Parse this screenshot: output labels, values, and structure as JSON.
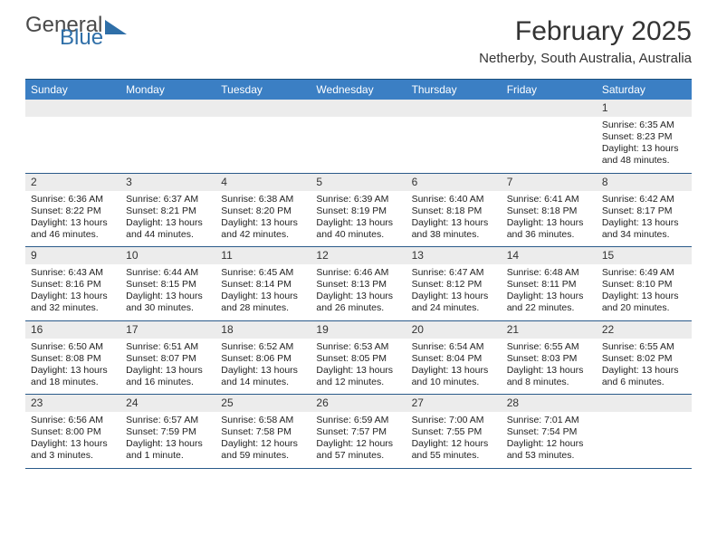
{
  "brand": {
    "part1": "General",
    "part2": "Blue"
  },
  "title": "February 2025",
  "location": "Netherby, South Australia, Australia",
  "colors": {
    "headerBlue": "#3b7fc4",
    "borderBlue": "#2a5a8a",
    "dayNumBg": "#ececec",
    "brandBlue": "#2f6fa8"
  },
  "dayNames": [
    "Sunday",
    "Monday",
    "Tuesday",
    "Wednesday",
    "Thursday",
    "Friday",
    "Saturday"
  ],
  "weeks": [
    [
      null,
      null,
      null,
      null,
      null,
      null,
      {
        "n": "1",
        "sunrise": "6:35 AM",
        "sunset": "8:23 PM",
        "daylight": "13 hours and 48 minutes."
      }
    ],
    [
      {
        "n": "2",
        "sunrise": "6:36 AM",
        "sunset": "8:22 PM",
        "daylight": "13 hours and 46 minutes."
      },
      {
        "n": "3",
        "sunrise": "6:37 AM",
        "sunset": "8:21 PM",
        "daylight": "13 hours and 44 minutes."
      },
      {
        "n": "4",
        "sunrise": "6:38 AM",
        "sunset": "8:20 PM",
        "daylight": "13 hours and 42 minutes."
      },
      {
        "n": "5",
        "sunrise": "6:39 AM",
        "sunset": "8:19 PM",
        "daylight": "13 hours and 40 minutes."
      },
      {
        "n": "6",
        "sunrise": "6:40 AM",
        "sunset": "8:18 PM",
        "daylight": "13 hours and 38 minutes."
      },
      {
        "n": "7",
        "sunrise": "6:41 AM",
        "sunset": "8:18 PM",
        "daylight": "13 hours and 36 minutes."
      },
      {
        "n": "8",
        "sunrise": "6:42 AM",
        "sunset": "8:17 PM",
        "daylight": "13 hours and 34 minutes."
      }
    ],
    [
      {
        "n": "9",
        "sunrise": "6:43 AM",
        "sunset": "8:16 PM",
        "daylight": "13 hours and 32 minutes."
      },
      {
        "n": "10",
        "sunrise": "6:44 AM",
        "sunset": "8:15 PM",
        "daylight": "13 hours and 30 minutes."
      },
      {
        "n": "11",
        "sunrise": "6:45 AM",
        "sunset": "8:14 PM",
        "daylight": "13 hours and 28 minutes."
      },
      {
        "n": "12",
        "sunrise": "6:46 AM",
        "sunset": "8:13 PM",
        "daylight": "13 hours and 26 minutes."
      },
      {
        "n": "13",
        "sunrise": "6:47 AM",
        "sunset": "8:12 PM",
        "daylight": "13 hours and 24 minutes."
      },
      {
        "n": "14",
        "sunrise": "6:48 AM",
        "sunset": "8:11 PM",
        "daylight": "13 hours and 22 minutes."
      },
      {
        "n": "15",
        "sunrise": "6:49 AM",
        "sunset": "8:10 PM",
        "daylight": "13 hours and 20 minutes."
      }
    ],
    [
      {
        "n": "16",
        "sunrise": "6:50 AM",
        "sunset": "8:08 PM",
        "daylight": "13 hours and 18 minutes."
      },
      {
        "n": "17",
        "sunrise": "6:51 AM",
        "sunset": "8:07 PM",
        "daylight": "13 hours and 16 minutes."
      },
      {
        "n": "18",
        "sunrise": "6:52 AM",
        "sunset": "8:06 PM",
        "daylight": "13 hours and 14 minutes."
      },
      {
        "n": "19",
        "sunrise": "6:53 AM",
        "sunset": "8:05 PM",
        "daylight": "13 hours and 12 minutes."
      },
      {
        "n": "20",
        "sunrise": "6:54 AM",
        "sunset": "8:04 PM",
        "daylight": "13 hours and 10 minutes."
      },
      {
        "n": "21",
        "sunrise": "6:55 AM",
        "sunset": "8:03 PM",
        "daylight": "13 hours and 8 minutes."
      },
      {
        "n": "22",
        "sunrise": "6:55 AM",
        "sunset": "8:02 PM",
        "daylight": "13 hours and 6 minutes."
      }
    ],
    [
      {
        "n": "23",
        "sunrise": "6:56 AM",
        "sunset": "8:00 PM",
        "daylight": "13 hours and 3 minutes."
      },
      {
        "n": "24",
        "sunrise": "6:57 AM",
        "sunset": "7:59 PM",
        "daylight": "13 hours and 1 minute."
      },
      {
        "n": "25",
        "sunrise": "6:58 AM",
        "sunset": "7:58 PM",
        "daylight": "12 hours and 59 minutes."
      },
      {
        "n": "26",
        "sunrise": "6:59 AM",
        "sunset": "7:57 PM",
        "daylight": "12 hours and 57 minutes."
      },
      {
        "n": "27",
        "sunrise": "7:00 AM",
        "sunset": "7:55 PM",
        "daylight": "12 hours and 55 minutes."
      },
      {
        "n": "28",
        "sunrise": "7:01 AM",
        "sunset": "7:54 PM",
        "daylight": "12 hours and 53 minutes."
      },
      null
    ]
  ],
  "labels": {
    "sunrise": "Sunrise:",
    "sunset": "Sunset:",
    "daylight": "Daylight:"
  }
}
